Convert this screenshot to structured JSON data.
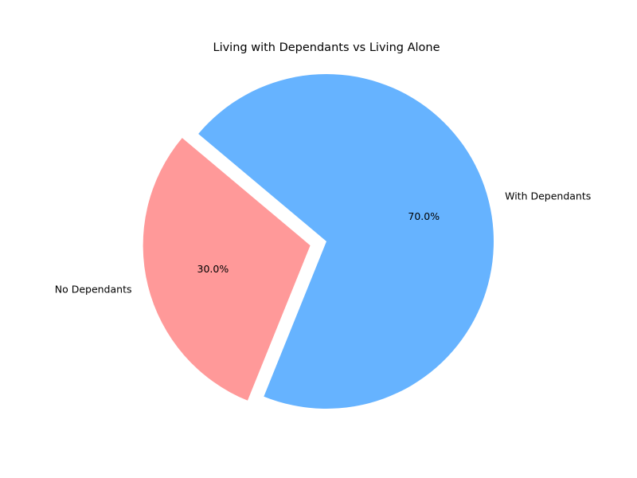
{
  "chart_data": {
    "type": "pie",
    "title": "Living with Dependants vs Living Alone",
    "slices": [
      {
        "label": "No Dependants",
        "value": 30.0,
        "pct_label": "30.0%",
        "color": "#ff9999",
        "exploded": true
      },
      {
        "label": "With Dependants",
        "value": 70.0,
        "pct_label": "70.0%",
        "color": "#66b3ff",
        "exploded": false
      }
    ],
    "start_angle_deg": 140,
    "direction": "counterclockwise",
    "legend": "none"
  }
}
